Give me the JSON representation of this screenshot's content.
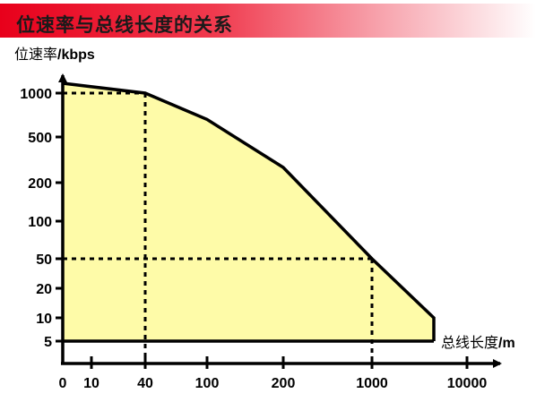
{
  "header": {
    "title": "位速率与总线长度的关系"
  },
  "chart_data": {
    "type": "area",
    "title": "位速率与总线长度的关系",
    "xlabel_prefix": "总线长度",
    "xlabel_unit": "/m",
    "ylabel_prefix": "位速率",
    "ylabel_unit": "/kbps",
    "x_ticks": [
      "0",
      "10",
      "40",
      "100",
      "200",
      "1000",
      "10000"
    ],
    "y_ticks": [
      "1000",
      "500",
      "200",
      "100",
      "50",
      "20",
      "10",
      "5"
    ],
    "series": [
      {
        "x": [
          0,
          40,
          100,
          200,
          1000,
          5000,
          5000
        ],
        "values": [
          1200,
          1000,
          700,
          300,
          50,
          10,
          5
        ]
      }
    ],
    "reference_lines": [
      {
        "x": 40,
        "y": 1000
      },
      {
        "x": 1000,
        "y": 50
      }
    ],
    "fill_color": "#fefba8",
    "line_color": "#000000",
    "grid": false
  }
}
